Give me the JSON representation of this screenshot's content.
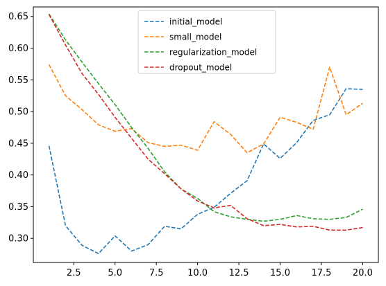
{
  "chart_data": {
    "type": "line",
    "title": "",
    "xlabel": "",
    "ylabel": "",
    "xlim": [
      0.05,
      20.95
    ],
    "ylim": [
      0.262,
      0.665
    ],
    "x_ticks": [
      2.5,
      5.0,
      7.5,
      10.0,
      12.5,
      15.0,
      17.5,
      20.0
    ],
    "x_tick_labels": [
      "2.5",
      "5.0",
      "7.5",
      "10.0",
      "12.5",
      "15.0",
      "17.5",
      "20.0"
    ],
    "y_ticks": [
      0.3,
      0.35,
      0.4,
      0.45,
      0.5,
      0.55,
      0.6,
      0.65
    ],
    "y_tick_labels": [
      "0.30",
      "0.35",
      "0.40",
      "0.45",
      "0.50",
      "0.55",
      "0.60",
      "0.65"
    ],
    "grid": false,
    "legend_position": "top-center",
    "line_style": "dashed",
    "x": [
      1,
      2,
      3,
      4,
      5,
      6,
      7,
      8,
      9,
      10,
      11,
      12,
      13,
      14,
      15,
      16,
      17,
      18,
      19,
      20
    ],
    "series": [
      {
        "name": "initial_model",
        "color": "#1f77b4",
        "values": [
          0.446,
          0.32,
          0.289,
          0.276,
          0.304,
          0.28,
          0.29,
          0.319,
          0.315,
          0.338,
          0.349,
          0.371,
          0.391,
          0.449,
          0.426,
          0.451,
          0.486,
          0.495,
          0.536,
          0.535
        ]
      },
      {
        "name": "small_model",
        "color": "#ff7f0e",
        "values": [
          0.574,
          0.525,
          0.503,
          0.479,
          0.469,
          0.473,
          0.451,
          0.445,
          0.447,
          0.439,
          0.484,
          0.464,
          0.435,
          0.449,
          0.491,
          0.483,
          0.472,
          0.57,
          0.495,
          0.513
        ]
      },
      {
        "name": "regularization_model",
        "color": "#2ca02c",
        "values": [
          0.654,
          0.613,
          0.578,
          0.544,
          0.511,
          0.475,
          0.442,
          0.405,
          0.378,
          0.363,
          0.342,
          0.334,
          0.33,
          0.327,
          0.33,
          0.336,
          0.331,
          0.33,
          0.333,
          0.346
        ]
      },
      {
        "name": "dropout_model",
        "color": "#d62728",
        "values": [
          0.653,
          0.605,
          0.56,
          0.527,
          0.491,
          0.458,
          0.425,
          0.402,
          0.378,
          0.359,
          0.348,
          0.352,
          0.331,
          0.32,
          0.322,
          0.318,
          0.319,
          0.313,
          0.313,
          0.317
        ]
      }
    ]
  }
}
